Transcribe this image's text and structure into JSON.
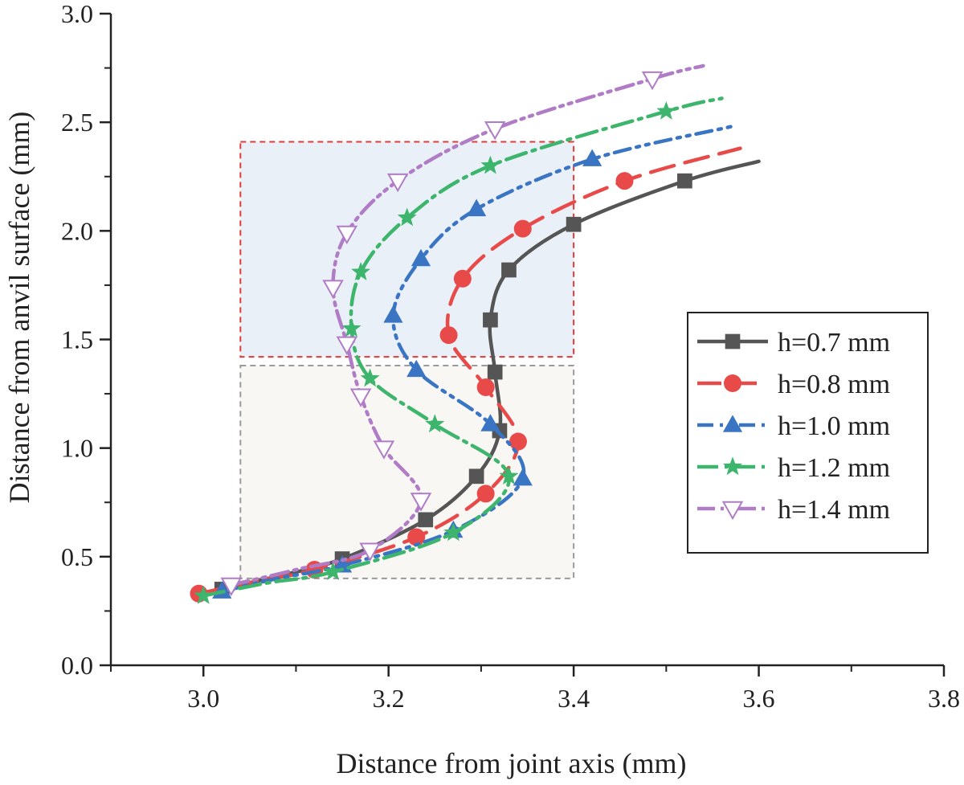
{
  "chart_data": {
    "type": "line",
    "title": "",
    "xlabel": "Distance from joint axis (mm)",
    "ylabel": "Distance from anvil surface (mm)",
    "xlim": [
      2.9,
      3.8
    ],
    "ylim": [
      0.0,
      3.0
    ],
    "xticks": [
      "3.0",
      "3.2",
      "3.4",
      "3.6",
      "3.8"
    ],
    "yticks": [
      "0.0",
      "0.5",
      "1.0",
      "1.5",
      "2.0",
      "2.5",
      "3.0"
    ],
    "grid": false,
    "legend_position": "right",
    "regions": [
      {
        "x": [
          3.04,
          3.4
        ],
        "y": [
          1.42,
          2.41
        ],
        "border": "#e23b3b",
        "fill": "#e9f0f7"
      },
      {
        "x": [
          3.04,
          3.4
        ],
        "y": [
          0.4,
          1.38
        ],
        "border": "#9a9a9a",
        "fill": "#f8f7f4"
      }
    ],
    "series": [
      {
        "name": "h=0.7 mm",
        "color": "#555555",
        "dash": "solid",
        "marker": "square",
        "points": [
          [
            3.01,
            0.34
          ],
          [
            3.02,
            0.35
          ],
          [
            3.08,
            0.41
          ],
          [
            3.15,
            0.49
          ],
          [
            3.24,
            0.67
          ],
          [
            3.295,
            0.87
          ],
          [
            3.32,
            1.08
          ],
          [
            3.315,
            1.35
          ],
          [
            3.31,
            1.59
          ],
          [
            3.33,
            1.82
          ],
          [
            3.4,
            2.03
          ],
          [
            3.52,
            2.23
          ],
          [
            3.6,
            2.32
          ]
        ],
        "marker_points": [
          [
            3.02,
            0.35
          ],
          [
            3.15,
            0.49
          ],
          [
            3.24,
            0.67
          ],
          [
            3.295,
            0.87
          ],
          [
            3.32,
            1.08
          ],
          [
            3.315,
            1.35
          ],
          [
            3.31,
            1.59
          ],
          [
            3.33,
            1.82
          ],
          [
            3.4,
            2.03
          ],
          [
            3.52,
            2.23
          ]
        ]
      },
      {
        "name": "h=0.8 mm",
        "color": "#e84a4a",
        "dash": "30,14",
        "marker": "circle",
        "points": [
          [
            2.995,
            0.33
          ],
          [
            3.06,
            0.39
          ],
          [
            3.12,
            0.44
          ],
          [
            3.23,
            0.59
          ],
          [
            3.305,
            0.79
          ],
          [
            3.34,
            1.03
          ],
          [
            3.305,
            1.28
          ],
          [
            3.265,
            1.52
          ],
          [
            3.28,
            1.78
          ],
          [
            3.345,
            2.01
          ],
          [
            3.455,
            2.23
          ],
          [
            3.58,
            2.38
          ]
        ],
        "marker_points": [
          [
            2.995,
            0.33
          ],
          [
            3.12,
            0.44
          ],
          [
            3.23,
            0.59
          ],
          [
            3.305,
            0.79
          ],
          [
            3.34,
            1.03
          ],
          [
            3.305,
            1.28
          ],
          [
            3.265,
            1.52
          ],
          [
            3.28,
            1.78
          ],
          [
            3.345,
            2.01
          ],
          [
            3.455,
            2.23
          ]
        ]
      },
      {
        "name": "h=1.0 mm",
        "color": "#3a75c4",
        "dash": "20,8,4,8,4,8",
        "marker": "triangle",
        "points": [
          [
            3.02,
            0.34
          ],
          [
            3.08,
            0.4
          ],
          [
            3.15,
            0.46
          ],
          [
            3.27,
            0.62
          ],
          [
            3.345,
            0.86
          ],
          [
            3.31,
            1.11
          ],
          [
            3.23,
            1.36
          ],
          [
            3.205,
            1.61
          ],
          [
            3.235,
            1.87
          ],
          [
            3.295,
            2.1
          ],
          [
            3.42,
            2.33
          ],
          [
            3.57,
            2.48
          ]
        ],
        "marker_points": [
          [
            3.02,
            0.34
          ],
          [
            3.15,
            0.46
          ],
          [
            3.27,
            0.62
          ],
          [
            3.345,
            0.86
          ],
          [
            3.31,
            1.11
          ],
          [
            3.23,
            1.36
          ],
          [
            3.205,
            1.61
          ],
          [
            3.235,
            1.87
          ],
          [
            3.295,
            2.1
          ],
          [
            3.42,
            2.33
          ]
        ]
      },
      {
        "name": "h=1.2 mm",
        "color": "#3db56c",
        "dash": "26,8,4,8",
        "marker": "star",
        "points": [
          [
            3.0,
            0.32
          ],
          [
            3.07,
            0.38
          ],
          [
            3.14,
            0.43
          ],
          [
            3.27,
            0.61
          ],
          [
            3.33,
            0.87
          ],
          [
            3.25,
            1.11
          ],
          [
            3.18,
            1.32
          ],
          [
            3.16,
            1.55
          ],
          [
            3.17,
            1.81
          ],
          [
            3.22,
            2.06
          ],
          [
            3.31,
            2.3
          ],
          [
            3.5,
            2.55
          ],
          [
            3.56,
            2.61
          ]
        ],
        "marker_points": [
          [
            3.0,
            0.32
          ],
          [
            3.14,
            0.43
          ],
          [
            3.27,
            0.61
          ],
          [
            3.33,
            0.87
          ],
          [
            3.25,
            1.11
          ],
          [
            3.18,
            1.32
          ],
          [
            3.16,
            1.55
          ],
          [
            3.17,
            1.81
          ],
          [
            3.22,
            2.06
          ],
          [
            3.31,
            2.3
          ],
          [
            3.5,
            2.55
          ]
        ]
      },
      {
        "name": "h=1.4 mm",
        "color": "#b07cc6",
        "dash": "22,7,4,7,4,7",
        "marker": "triangle-down-open",
        "points": [
          [
            3.03,
            0.37
          ],
          [
            3.1,
            0.44
          ],
          [
            3.18,
            0.53
          ],
          [
            3.235,
            0.76
          ],
          [
            3.195,
            1.0
          ],
          [
            3.17,
            1.24
          ],
          [
            3.155,
            1.48
          ],
          [
            3.14,
            1.74
          ],
          [
            3.155,
            1.99
          ],
          [
            3.21,
            2.23
          ],
          [
            3.315,
            2.47
          ],
          [
            3.485,
            2.7
          ],
          [
            3.54,
            2.76
          ]
        ],
        "marker_points": [
          [
            3.03,
            0.37
          ],
          [
            3.18,
            0.53
          ],
          [
            3.235,
            0.76
          ],
          [
            3.195,
            1.0
          ],
          [
            3.17,
            1.24
          ],
          [
            3.155,
            1.48
          ],
          [
            3.14,
            1.74
          ],
          [
            3.155,
            1.99
          ],
          [
            3.21,
            2.23
          ],
          [
            3.315,
            2.47
          ],
          [
            3.485,
            2.7
          ]
        ]
      }
    ]
  }
}
